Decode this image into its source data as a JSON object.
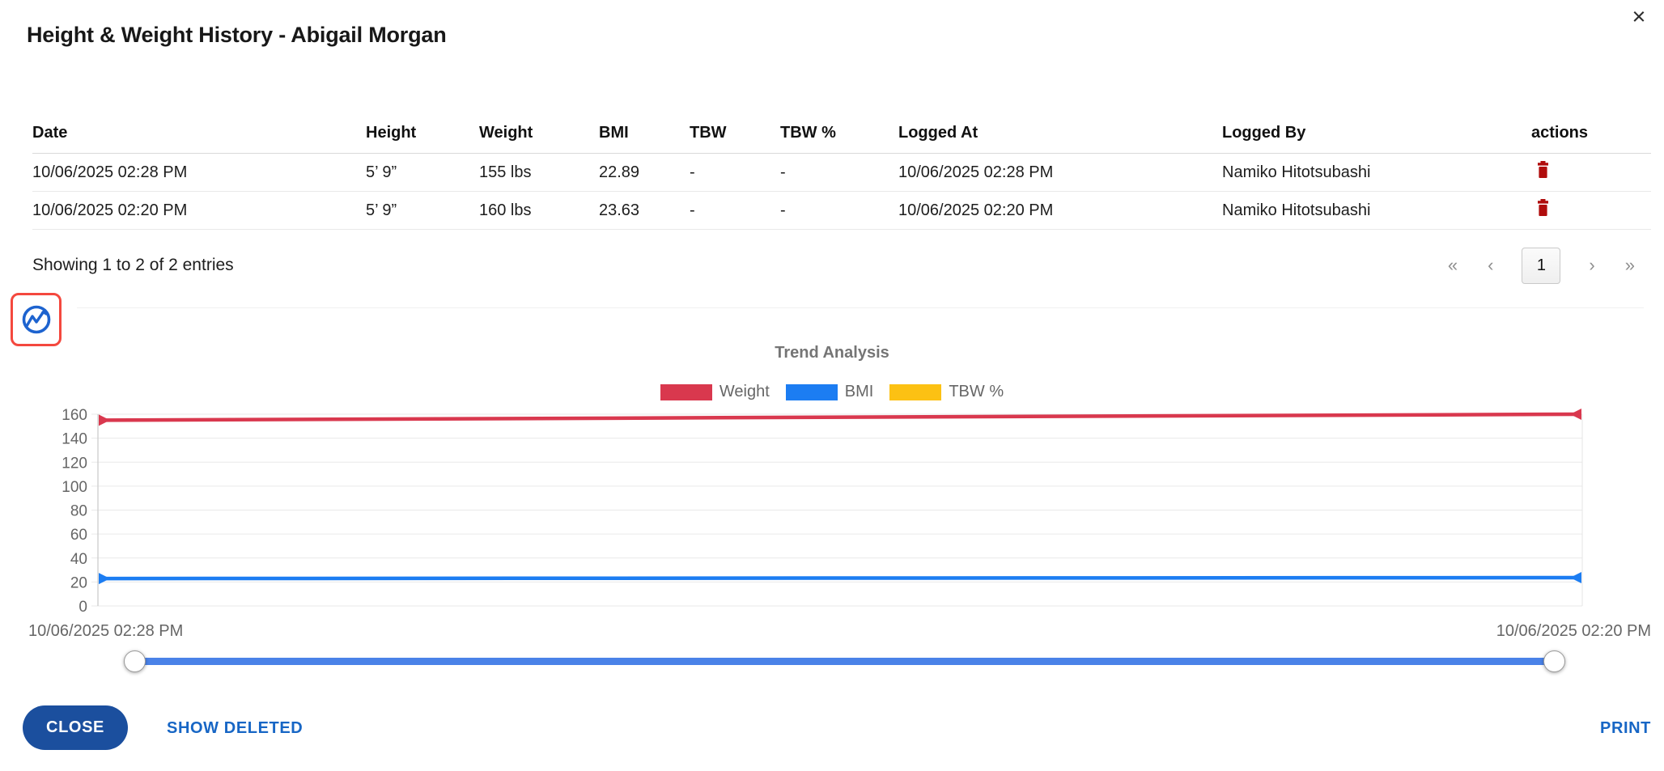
{
  "header": {
    "title": "Height & Weight History - Abigail Morgan",
    "close_label": "×"
  },
  "table": {
    "columns": [
      "Date",
      "Height",
      "Weight",
      "BMI",
      "TBW",
      "TBW %",
      "Logged At",
      "Logged By",
      "actions"
    ],
    "rows": [
      {
        "date": "10/06/2025 02:28 PM",
        "height": "5’ 9”",
        "weight": "155 lbs",
        "bmi": "22.89",
        "tbw": "-",
        "tbw_pct": "-",
        "logged_at": "10/06/2025 02:28 PM",
        "logged_by": "Namiko Hitotsubashi"
      },
      {
        "date": "10/06/2025 02:20 PM",
        "height": "5’ 9”",
        "weight": "160 lbs",
        "bmi": "23.63",
        "tbw": "-",
        "tbw_pct": "-",
        "logged_at": "10/06/2025 02:20 PM",
        "logged_by": "Namiko Hitotsubashi"
      }
    ],
    "summary": "Showing 1 to 2 of 2 entries"
  },
  "pagination": {
    "first": "«",
    "prev": "‹",
    "page": "1",
    "next": "›",
    "last": "»"
  },
  "chart_data": {
    "type": "line",
    "title": "Trend Analysis",
    "x": [
      "10/06/2025 02:28 PM",
      "10/06/2025 02:20 PM"
    ],
    "series": [
      {
        "name": "Weight",
        "color": "#d9384e",
        "values": [
          155,
          160
        ]
      },
      {
        "name": "BMI",
        "color": "#1c7df2",
        "values": [
          22.89,
          23.63
        ]
      },
      {
        "name": "TBW %",
        "color": "#fcc113",
        "values": [
          null,
          null
        ]
      }
    ],
    "ylim": [
      0,
      160
    ],
    "ytick_step": 20,
    "grid": true,
    "legend_position": "top"
  },
  "footer": {
    "close": "CLOSE",
    "show_deleted": "SHOW DELETED",
    "print": "PRINT"
  },
  "colors": {
    "weight_line": "#d9384e",
    "bmi_line": "#1c7df2",
    "tbw_line": "#fcc113",
    "trash_icon": "#b00d0d",
    "close_button": "#1b4f9e",
    "link_blue": "#1766c5",
    "slider_blue": "#4a82e8",
    "toggle_outline_red": "#f4483e",
    "toggle_icon_blue": "#1d63cf"
  }
}
